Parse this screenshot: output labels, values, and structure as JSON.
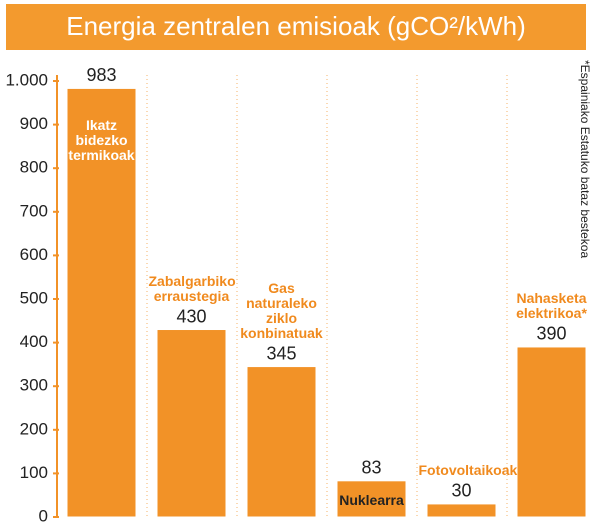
{
  "chart_data": {
    "type": "bar",
    "title": "Energia zentralen emisioak (gCO²/kWh)",
    "note": "*Espainiako Estatuko bataz bestekoa",
    "categories": [
      "Ikatz bidezko termikoak",
      "Zabalgarbiko erraustegia",
      "Gas naturaleko ziklo konbinatuak",
      "Nuklearra",
      "Fotovoltaikoak",
      "Nahasketa elektrikoa*"
    ],
    "values": [
      983,
      430,
      345,
      83,
      30,
      390
    ],
    "color": "#f29227",
    "ylim": [
      0,
      1000
    ],
    "yticks": [
      0,
      100,
      200,
      300,
      400,
      500,
      600,
      700,
      800,
      900,
      {
        "value": 1000,
        "label": "1.000"
      }
    ]
  }
}
